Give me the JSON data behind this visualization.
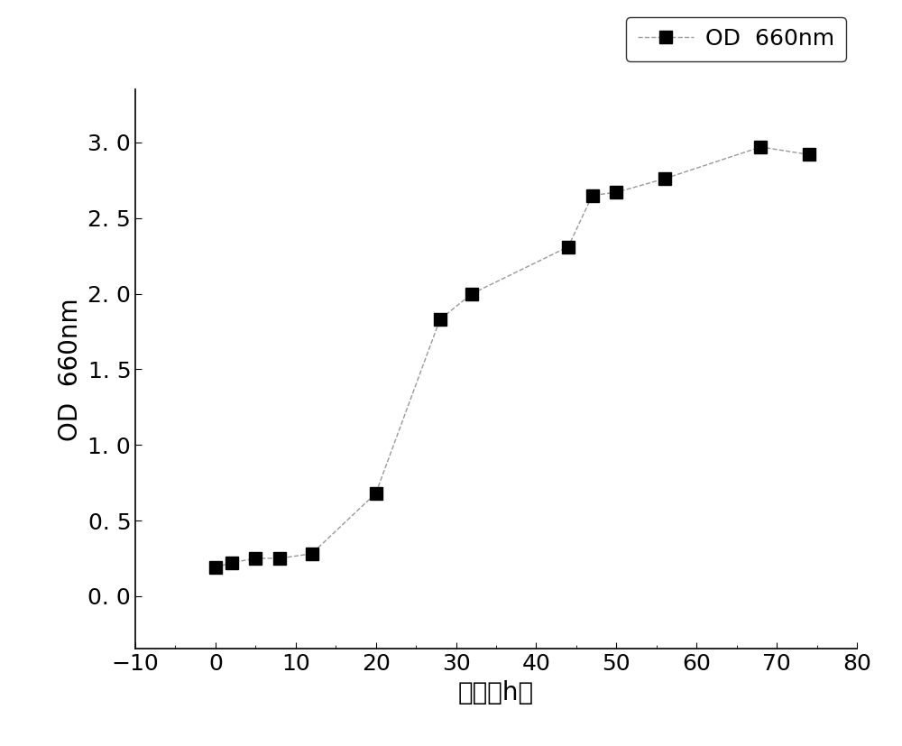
{
  "x": [
    0,
    2,
    5,
    8,
    12,
    20,
    28,
    32,
    44,
    47,
    50,
    56,
    68,
    74
  ],
  "y": [
    0.19,
    0.22,
    0.25,
    0.25,
    0.28,
    0.68,
    1.83,
    2.0,
    2.31,
    2.65,
    2.67,
    2.76,
    2.97,
    2.92
  ],
  "line_color": "#999999",
  "marker_color": "#000000",
  "marker": "s",
  "marker_size": 10,
  "line_style": "--",
  "line_width": 1.0,
  "xlabel": "时间（h）",
  "ylabel": "OD  660nm",
  "legend_label": "OD  660nm",
  "xlim": [
    -10,
    80
  ],
  "ylim": [
    -0.35,
    3.35
  ],
  "xticks": [
    -10,
    0,
    10,
    20,
    30,
    40,
    50,
    60,
    70,
    80
  ],
  "yticks": [
    0.0,
    0.5,
    1.0,
    1.5,
    2.0,
    2.5,
    3.0
  ],
  "ytick_labels": [
    "0. 0",
    "0. 5",
    "1. 0",
    "1. 5",
    "2. 0",
    "2. 5",
    "3. 0"
  ],
  "background_color": "#ffffff",
  "label_fontsize": 20,
  "tick_fontsize": 18,
  "legend_fontsize": 18
}
